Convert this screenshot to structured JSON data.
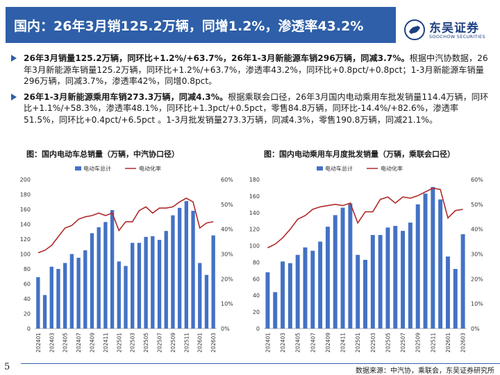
{
  "header": {
    "title": "国内：26年3月销125.2万辆，同增1.2%，渗透率43.2%"
  },
  "logo": {
    "name_cn": "东吴证券",
    "name_en": "SOOCHOW SECURITIES"
  },
  "bullets": [
    {
      "bold": "26年3月销量125.2万辆，同环比+1.2%/+63.7%，26年1-3月新能源车销296万辆，同减3.7%。",
      "text": "根据中汽协数据，26年3月新能源车销量125.2万辆，同环比+1.2%/+63.7%，渗透率43.2%，同环比+0.8pct/+0.8pct；1-3月新能源车销量296万辆，同减3.7%，渗透率42%，同增0.8pct。"
    },
    {
      "bold": "26年1-3月新能源乘用车销273.3万辆，同减4.3%。",
      "text": "根据乘联会口径，26年3月国内电动乘用车批发销量114.4万辆，同环比+1.1%/+58.3%，渗透率48.1%，同环比+1.3pct/+0.5pct，零售84.8万辆，同环比-14.4%/+82.6%，渗透率51.5%，同环比+0.4pct/+6.5pct 。1-3月批发销量273.3万辆，同减4.3%，零售190.8万辆，同减21.1%。"
    }
  ],
  "charts": {
    "left_title": "图：国内电动车总销量（万辆，中汽协口径）",
    "right_title": "图：国内电动乘用车月度批发销量（万辆，乘联会口径）"
  },
  "colors": {
    "bar": "#4472c4",
    "line": "#b02a2a",
    "header": "#2e5fa8"
  },
  "chart_data": [
    {
      "type": "bar",
      "title": "图：国内电动车总销量（万辆，中汽协口径）",
      "legend": [
        "电动车总计",
        "电动化率"
      ],
      "categories": [
        "202401",
        "202402",
        "202403",
        "202404",
        "202405",
        "202406",
        "202407",
        "202408",
        "202409",
        "202410",
        "202411",
        "202412",
        "202501",
        "202502",
        "202503",
        "202504",
        "202505",
        "202506",
        "202507",
        "202508",
        "202509",
        "202510",
        "202511",
        "202512",
        "202601",
        "202602",
        "202603"
      ],
      "x_tick_labels": [
        "202401",
        "202403",
        "202405",
        "202407",
        "202409",
        "202411",
        "202501",
        "202503",
        "202505",
        "202507",
        "202509",
        "202511",
        "202601",
        "202603"
      ],
      "series": [
        {
          "name": "电动车总计",
          "axis": "left",
          "values": [
            69,
            45,
            83,
            80,
            88,
            100,
            95,
            105,
            128,
            136,
            143,
            159,
            90,
            84,
            115,
            115,
            123,
            124,
            119,
            131,
            152,
            162,
            171,
            158,
            88,
            72,
            125
          ]
        },
        {
          "name": "电动化率",
          "axis": "right",
          "values": [
            30.5,
            31.5,
            33.5,
            37,
            40.5,
            41.5,
            44,
            45,
            45.5,
            46.5,
            45.5,
            46.5,
            39.5,
            43,
            43,
            47.5,
            49,
            46.5,
            48.5,
            48.5,
            49,
            51,
            52.5,
            51,
            40.5,
            42.5,
            43
          ]
        }
      ],
      "y_left": {
        "min": 0,
        "max": 200,
        "ticks": [
          0,
          20,
          40,
          60,
          80,
          100,
          120,
          140,
          160,
          180,
          200
        ]
      },
      "y_right": {
        "min": 0,
        "max": 60,
        "ticks": [
          "0%",
          "10%",
          "20%",
          "30%",
          "40%",
          "50%",
          "60%"
        ]
      }
    },
    {
      "type": "bar",
      "title": "图：国内电动乘用车月度批发销量（万辆，乘联会口径）",
      "legend": [
        "电动车总计",
        "电动化率"
      ],
      "categories": [
        "202401",
        "202402",
        "202403",
        "202404",
        "202405",
        "202406",
        "202407",
        "202408",
        "202409",
        "202410",
        "202411",
        "202412",
        "202501",
        "202502",
        "202503",
        "202504",
        "202505",
        "202506",
        "202507",
        "202508",
        "202509",
        "202510",
        "202511",
        "202512",
        "202601",
        "202602",
        "202603"
      ],
      "x_tick_labels": [
        "202401",
        "202403",
        "202405",
        "202407",
        "202409",
        "202411",
        "202501",
        "202503",
        "202505",
        "202507",
        "202509",
        "202511",
        "202601",
        "202603"
      ],
      "series": [
        {
          "name": "电动车总计",
          "axis": "left",
          "values": [
            68,
            44,
            81,
            79,
            89,
            98,
            94,
            105,
            123,
            137,
            146,
            151,
            89,
            83,
            113,
            113,
            122,
            124,
            118,
            128,
            150,
            163,
            171,
            156,
            87,
            72,
            114
          ]
        },
        {
          "name": "电动化率",
          "axis": "right",
          "values": [
            32.5,
            34,
            36.5,
            40,
            44,
            45.5,
            48,
            49,
            49.5,
            50,
            49.5,
            50.5,
            42.5,
            47,
            47,
            52,
            53,
            50.5,
            53,
            52.5,
            53.5,
            55,
            56.5,
            56,
            44.5,
            47.5,
            48
          ]
        }
      ],
      "y_left": {
        "min": 0,
        "max": 180,
        "ticks": [
          0,
          20,
          40,
          60,
          80,
          100,
          120,
          140,
          160,
          180
        ]
      },
      "y_right": {
        "min": 0,
        "max": 60,
        "ticks": [
          "0%",
          "10%",
          "20%",
          "30%",
          "40%",
          "50%",
          "60%"
        ]
      }
    }
  ],
  "footer": {
    "page_number": "5",
    "source": "数据来源：中汽协，乘联会，东吴证券研究所"
  }
}
